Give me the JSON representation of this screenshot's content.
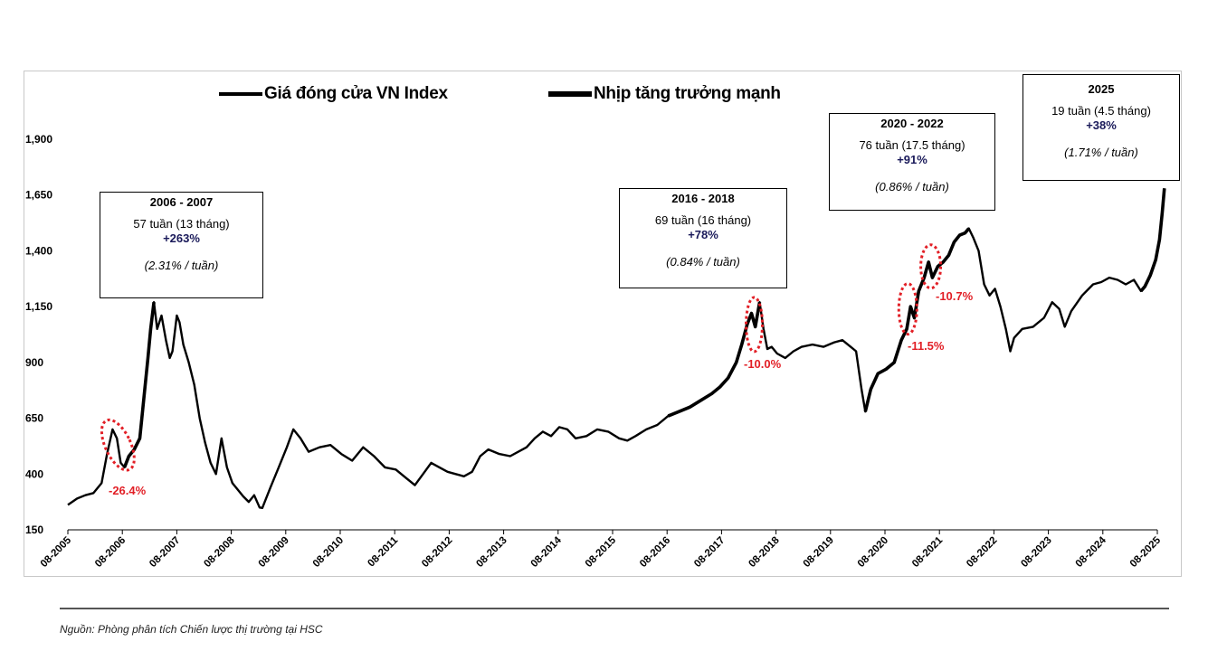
{
  "legend": {
    "items": [
      {
        "label": "Giá đóng cửa VN Index"
      },
      {
        "label": "Nhịp tăng trưởng mạnh"
      }
    ]
  },
  "annotations": {
    "boxes": [
      {
        "title": "2006 - 2007",
        "duration": "57 tuần (13 tháng)",
        "gain": "+263%",
        "rate": "(2.31% / tuần)"
      },
      {
        "title": "2016 - 2018",
        "duration": "69 tuần (16 tháng)",
        "gain": "+78%",
        "rate": "(0.84% / tuần)"
      },
      {
        "title": "2020 - 2022",
        "duration": "76 tuần (17.5 tháng)",
        "gain": "+91%",
        "rate": "(0.86% / tuần)"
      },
      {
        "title": "2025",
        "duration": "19 tuần (4.5 tháng)",
        "gain": "+38%",
        "rate": "(1.71% / tuần)"
      }
    ],
    "drawdowns": [
      "-26.4%",
      "-10.0%",
      "-11.5%",
      "-10.7%"
    ]
  },
  "source": "Nguồn: Phòng phân tích Chiến lược thị trường tại HSC",
  "colors": {
    "line": "#000000",
    "drawdown": "#e21f26",
    "grid": "#c8c8c8"
  },
  "chart_data": {
    "type": "line",
    "ylim": [
      150,
      1900
    ],
    "yticks": [
      "150",
      "400",
      "650",
      "900",
      "1,150",
      "1,400",
      "1,650",
      "1,900"
    ],
    "xticks": [
      "08-2005",
      "08-2006",
      "08-2007",
      "08-2008",
      "08-2009",
      "08-2010",
      "08-2011",
      "08-2012",
      "08-2013",
      "08-2014",
      "08-2015",
      "08-2016",
      "08-2017",
      "08-2018",
      "08-2019",
      "08-2020",
      "08-2021",
      "08-2022",
      "08-2023",
      "08-2024",
      "08-2025"
    ],
    "series": [
      {
        "name": "Giá đóng cửa VN Index",
        "points": [
          [
            2005.58,
            262
          ],
          [
            2005.75,
            290
          ],
          [
            2005.9,
            305
          ],
          [
            2006.05,
            315
          ],
          [
            2006.2,
            360
          ],
          [
            2006.3,
            490
          ],
          [
            2006.4,
            600
          ],
          [
            2006.48,
            560
          ],
          [
            2006.55,
            450
          ],
          [
            2006.62,
            430
          ],
          [
            2006.7,
            480
          ],
          [
            2006.8,
            510
          ],
          [
            2006.9,
            560
          ],
          [
            2007.0,
            800
          ],
          [
            2007.05,
            920
          ],
          [
            2007.1,
            1050
          ],
          [
            2007.16,
            1170
          ],
          [
            2007.22,
            1050
          ],
          [
            2007.3,
            1110
          ],
          [
            2007.38,
            1000
          ],
          [
            2007.45,
            920
          ],
          [
            2007.5,
            950
          ],
          [
            2007.58,
            1110
          ],
          [
            2007.63,
            1080
          ],
          [
            2007.7,
            980
          ],
          [
            2007.8,
            900
          ],
          [
            2007.9,
            800
          ],
          [
            2008.0,
            650
          ],
          [
            2008.1,
            540
          ],
          [
            2008.2,
            450
          ],
          [
            2008.3,
            400
          ],
          [
            2008.4,
            560
          ],
          [
            2008.5,
            430
          ],
          [
            2008.6,
            360
          ],
          [
            2008.7,
            330
          ],
          [
            2008.8,
            300
          ],
          [
            2008.9,
            275
          ],
          [
            2009.0,
            305
          ],
          [
            2009.1,
            250
          ],
          [
            2009.15,
            248
          ],
          [
            2009.3,
            340
          ],
          [
            2009.45,
            430
          ],
          [
            2009.6,
            520
          ],
          [
            2009.72,
            600
          ],
          [
            2009.85,
            560
          ],
          [
            2010.0,
            500
          ],
          [
            2010.2,
            520
          ],
          [
            2010.4,
            530
          ],
          [
            2010.6,
            490
          ],
          [
            2010.8,
            460
          ],
          [
            2011.0,
            520
          ],
          [
            2011.2,
            480
          ],
          [
            2011.4,
            430
          ],
          [
            2011.6,
            420
          ],
          [
            2011.8,
            380
          ],
          [
            2011.95,
            350
          ],
          [
            2012.1,
            400
          ],
          [
            2012.25,
            450
          ],
          [
            2012.4,
            430
          ],
          [
            2012.55,
            410
          ],
          [
            2012.7,
            400
          ],
          [
            2012.85,
            390
          ],
          [
            2013.0,
            410
          ],
          [
            2013.15,
            480
          ],
          [
            2013.3,
            510
          ],
          [
            2013.5,
            490
          ],
          [
            2013.7,
            480
          ],
          [
            2013.85,
            500
          ],
          [
            2014.0,
            520
          ],
          [
            2014.15,
            560
          ],
          [
            2014.3,
            590
          ],
          [
            2014.45,
            570
          ],
          [
            2014.6,
            610
          ],
          [
            2014.75,
            600
          ],
          [
            2014.9,
            560
          ],
          [
            2015.1,
            570
          ],
          [
            2015.3,
            600
          ],
          [
            2015.5,
            590
          ],
          [
            2015.7,
            560
          ],
          [
            2015.85,
            550
          ],
          [
            2016.0,
            570
          ],
          [
            2016.2,
            600
          ],
          [
            2016.4,
            620
          ],
          [
            2016.6,
            660
          ],
          [
            2016.8,
            680
          ],
          [
            2017.0,
            700
          ],
          [
            2017.2,
            730
          ],
          [
            2017.4,
            760
          ],
          [
            2017.55,
            790
          ],
          [
            2017.7,
            830
          ],
          [
            2017.85,
            900
          ],
          [
            2017.95,
            980
          ],
          [
            2018.05,
            1070
          ],
          [
            2018.13,
            1120
          ],
          [
            2018.2,
            1060
          ],
          [
            2018.28,
            1170
          ],
          [
            2018.35,
            1050
          ],
          [
            2018.42,
            960
          ],
          [
            2018.5,
            970
          ],
          [
            2018.6,
            940
          ],
          [
            2018.75,
            920
          ],
          [
            2018.9,
            950
          ],
          [
            2019.05,
            970
          ],
          [
            2019.25,
            980
          ],
          [
            2019.45,
            970
          ],
          [
            2019.65,
            990
          ],
          [
            2019.8,
            1000
          ],
          [
            2019.95,
            970
          ],
          [
            2020.05,
            950
          ],
          [
            2020.15,
            780
          ],
          [
            2020.22,
            680
          ],
          [
            2020.32,
            780
          ],
          [
            2020.45,
            850
          ],
          [
            2020.6,
            870
          ],
          [
            2020.75,
            900
          ],
          [
            2020.88,
            1000
          ],
          [
            2020.98,
            1050
          ],
          [
            2021.05,
            1150
          ],
          [
            2021.12,
            1100
          ],
          [
            2021.2,
            1220
          ],
          [
            2021.3,
            1280
          ],
          [
            2021.38,
            1350
          ],
          [
            2021.45,
            1280
          ],
          [
            2021.55,
            1330
          ],
          [
            2021.65,
            1350
          ],
          [
            2021.75,
            1380
          ],
          [
            2021.85,
            1440
          ],
          [
            2021.95,
            1470
          ],
          [
            2022.05,
            1480
          ],
          [
            2022.12,
            1500
          ],
          [
            2022.2,
            1460
          ],
          [
            2022.3,
            1400
          ],
          [
            2022.4,
            1250
          ],
          [
            2022.5,
            1200
          ],
          [
            2022.6,
            1230
          ],
          [
            2022.7,
            1150
          ],
          [
            2022.8,
            1050
          ],
          [
            2022.88,
            950
          ],
          [
            2022.95,
            1010
          ],
          [
            2023.1,
            1050
          ],
          [
            2023.3,
            1060
          ],
          [
            2023.5,
            1100
          ],
          [
            2023.65,
            1170
          ],
          [
            2023.78,
            1140
          ],
          [
            2023.88,
            1060
          ],
          [
            2024.0,
            1130
          ],
          [
            2024.2,
            1200
          ],
          [
            2024.4,
            1250
          ],
          [
            2024.55,
            1260
          ],
          [
            2024.7,
            1280
          ],
          [
            2024.85,
            1270
          ],
          [
            2025.0,
            1250
          ],
          [
            2025.15,
            1270
          ],
          [
            2025.28,
            1220
          ],
          [
            2025.35,
            1240
          ],
          [
            2025.45,
            1290
          ],
          [
            2025.55,
            1360
          ],
          [
            2025.62,
            1450
          ],
          [
            2025.67,
            1570
          ],
          [
            2025.71,
            1680
          ]
        ]
      },
      {
        "name": "Nhịp tăng trưởng mạnh",
        "segments": [
          [
            2006.62,
            2007.16
          ],
          [
            2016.6,
            2018.28
          ],
          [
            2020.22,
            2022.12
          ],
          [
            2025.28,
            2025.71
          ]
        ]
      }
    ]
  }
}
